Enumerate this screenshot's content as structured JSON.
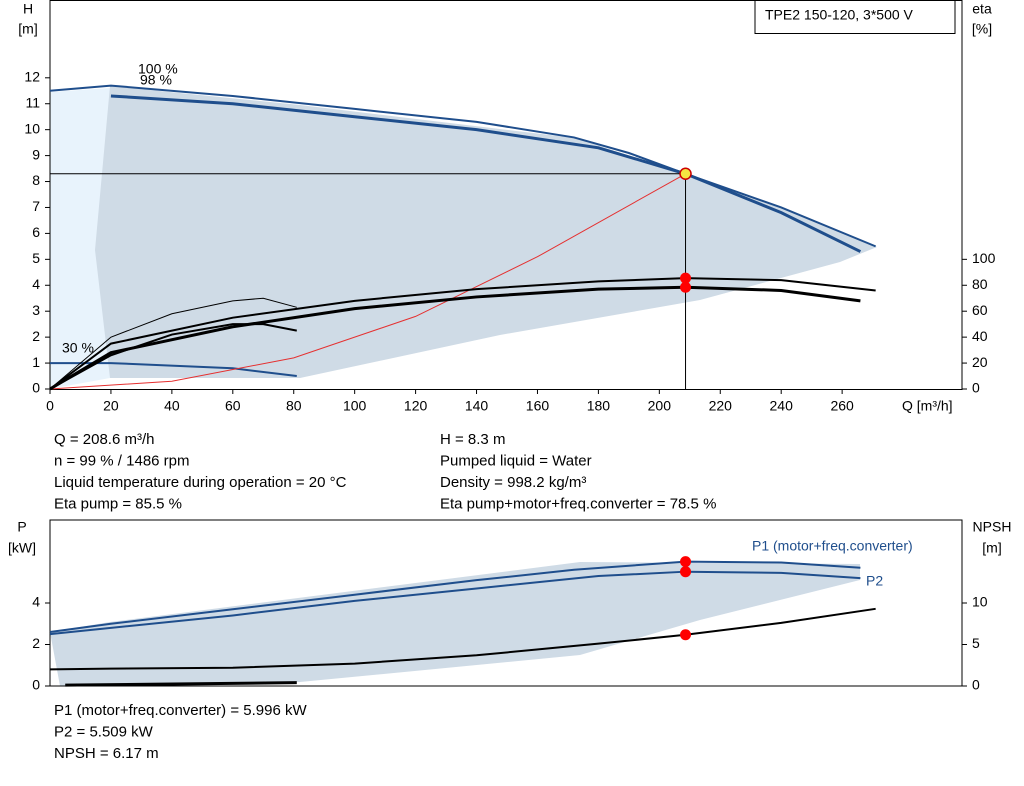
{
  "title": "TPE2 150-120, 3*500 V",
  "chart_data": [
    {
      "type": "line",
      "xlabel": "Q [m³/h]",
      "ylabel": "H",
      "yunit": "[m]",
      "y2label": "eta",
      "y2unit": "[%]",
      "xlim": [
        0,
        300
      ],
      "xticks": [
        0,
        20,
        40,
        60,
        80,
        100,
        120,
        140,
        160,
        180,
        200,
        220,
        240,
        260
      ],
      "ylim": [
        0,
        15
      ],
      "yticks": [
        0,
        1,
        2,
        3,
        4,
        5,
        6,
        7,
        8,
        9,
        10,
        11,
        12
      ],
      "y2lim": [
        0,
        300
      ],
      "y2ticks": [
        0,
        20,
        40,
        60,
        80,
        100
      ],
      "series": [
        {
          "name": "100 %",
          "color": "#1f4e8c",
          "width": 2,
          "x": [
            0,
            20,
            60,
            100,
            140,
            172,
            190,
            208.6,
            240,
            271
          ],
          "values": [
            11.5,
            11.7,
            11.3,
            10.8,
            10.3,
            9.7,
            9.1,
            8.3,
            7.0,
            5.5
          ]
        },
        {
          "name": "98 %",
          "color": "#1f4e8c",
          "width": 3,
          "x": [
            20,
            60,
            100,
            140,
            180,
            208.6,
            240,
            266
          ],
          "values": [
            11.3,
            11.0,
            10.5,
            10.0,
            9.3,
            8.3,
            6.8,
            5.3
          ]
        },
        {
          "name": "30 %",
          "color": "#1f4e8c",
          "width": 2,
          "x": [
            0,
            20,
            60,
            81
          ],
          "values": [
            1.0,
            1.0,
            0.8,
            0.5
          ]
        },
        {
          "color": "#e53030",
          "width": 1,
          "x": [
            0,
            40,
            80,
            120,
            160,
            208.6
          ],
          "values": [
            0,
            0.3,
            1.2,
            2.8,
            5.1,
            8.3
          ]
        },
        {
          "color": "#000000",
          "width": 2,
          "axis": "y2",
          "x": [
            0,
            20,
            60,
            100,
            140,
            180,
            208.6,
            240,
            271
          ],
          "values": [
            0,
            35,
            55,
            68,
            77,
            83,
            85.5,
            84,
            76
          ]
        },
        {
          "color": "#000000",
          "width": 3,
          "axis": "y2",
          "x": [
            0,
            20,
            60,
            100,
            140,
            180,
            208.6,
            240,
            266
          ],
          "values": [
            0,
            28,
            48,
            62,
            71,
            77,
            78.5,
            76,
            68
          ]
        },
        {
          "color": "#000000",
          "width": 1,
          "axis": "y2",
          "x": [
            0,
            20,
            40,
            60,
            70,
            81
          ],
          "values": [
            0,
            40,
            58,
            68,
            70,
            63
          ]
        },
        {
          "color": "#000000",
          "width": 2,
          "axis": "y2",
          "x": [
            0,
            20,
            40,
            60,
            70,
            81
          ],
          "values": [
            0,
            26,
            42,
            50,
            50,
            45
          ]
        }
      ],
      "markers": [
        {
          "x": 208.6,
          "value": 8.3,
          "color": "#f5e642"
        },
        {
          "x": 208.6,
          "value": 85.5,
          "axis": "y2",
          "color": "#ff0000"
        },
        {
          "x": 208.6,
          "value": 78.5,
          "axis": "y2",
          "color": "#ff0000"
        }
      ]
    },
    {
      "type": "line",
      "ylabel": "P",
      "yunit": "[kW]",
      "y2label": "NPSH",
      "y2unit": "[m]",
      "xlim": [
        0,
        300
      ],
      "ylim": [
        0,
        8
      ],
      "yticks": [
        0,
        2,
        4
      ],
      "y2lim": [
        0,
        20
      ],
      "y2ticks": [
        0,
        5,
        10
      ],
      "series": [
        {
          "name": "P1 (motor+freq.converter)",
          "color": "#1f4e8c",
          "width": 2,
          "x": [
            0,
            20,
            60,
            100,
            140,
            172,
            208.6,
            240,
            266
          ],
          "values": [
            2.6,
            3.0,
            3.7,
            4.4,
            5.1,
            5.6,
            5.996,
            5.95,
            5.7
          ]
        },
        {
          "name": "P2",
          "color": "#1f4e8c",
          "width": 2,
          "x": [
            0,
            20,
            60,
            100,
            140,
            180,
            208.6,
            240,
            266
          ],
          "values": [
            2.5,
            2.8,
            3.4,
            4.1,
            4.7,
            5.3,
            5.509,
            5.45,
            5.2
          ]
        },
        {
          "color": "#000000",
          "width": 2,
          "axis": "y2",
          "x": [
            0,
            20,
            60,
            100,
            140,
            180,
            208.6,
            240,
            271
          ],
          "values": [
            2.0,
            2.1,
            2.2,
            2.7,
            3.7,
            5.1,
            6.17,
            7.6,
            9.3
          ]
        },
        {
          "color": "#000000",
          "width": 3,
          "axis": "y2",
          "x": [
            5,
            81
          ],
          "values": [
            0.1,
            0.4
          ]
        }
      ],
      "markers": [
        {
          "x": 208.6,
          "value": 5.996,
          "color": "#ff0000"
        },
        {
          "x": 208.6,
          "value": 5.509,
          "color": "#ff0000"
        },
        {
          "x": 208.6,
          "value": 6.17,
          "axis": "y2",
          "color": "#ff0000"
        }
      ]
    }
  ],
  "info_top_left": [
    "Q = 208.6 m³/h",
    "n = 99 % / 1486 rpm",
    "Liquid temperature during operation = 20 °C",
    "Eta pump = 85.5 %"
  ],
  "info_top_right": [
    "H = 8.3 m",
    "Pumped liquid = Water",
    "Density = 998.2 kg/m³",
    "Eta pump+motor+freq.converter = 78.5 %"
  ],
  "info_bottom": [
    "P1 (motor+freq.converter) = 5.996 kW",
    "P2 = 5.509 kW",
    "NPSH = 6.17 m"
  ]
}
